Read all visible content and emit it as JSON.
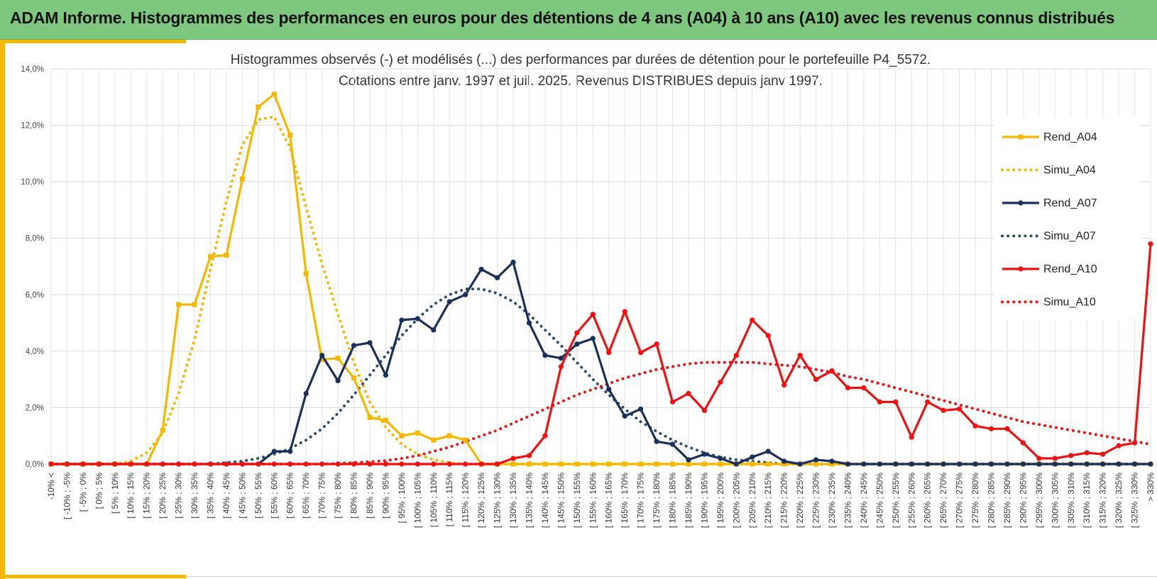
{
  "banner": {
    "title": "ADAM Informe. Histogrammes des performances en euros pour des détentions de 4 ans (A04) à 10 ans (A10) avec les revenus connus distribués"
  },
  "chart_data": {
    "type": "line",
    "title_lines": [
      "Histogrammes observés (-) et modélisés (...) des performances par durées de détention pour le portefeuille P4_5572.",
      "Cotations entre janv. 1997 et juil. 2025. Revenus DISTRIBUES depuis janv 1997."
    ],
    "ylim": [
      0,
      14
    ],
    "y_ticks": [
      0,
      2,
      4,
      6,
      8,
      10,
      12,
      14
    ],
    "y_tick_labels": [
      "0,0%",
      "2,0%",
      "4,0%",
      "6,0%",
      "8,0%",
      "10,0%",
      "12,0%",
      "14,0%"
    ],
    "grid": true,
    "legend_position": "right",
    "categories": [
      "-10% <",
      "[ -10% ; -5%",
      "[ -5% ; 0%",
      "[ 0% ; 5%",
      "[ 5% ; 10%",
      "[ 10% ; 15%",
      "[ 15% ; 20%",
      "[ 20% ; 25%",
      "[ 25% ; 30%",
      "[ 30% ; 35%",
      "[ 35% ; 40%",
      "[ 40% ; 45%",
      "[ 45% ; 50%",
      "[ 50% ; 55%",
      "[ 55% ; 60%",
      "[ 60% ; 65%",
      "[ 65% ; 70%",
      "[ 70% ; 75%",
      "[ 75% ; 80%",
      "[ 80% ; 85%",
      "[ 85% ; 90%",
      "[ 90% ; 95%",
      "[ 95% ; 100%",
      "[ 100% ; 105%",
      "[ 105% ; 110%",
      "[ 110% ; 115%",
      "[ 115% ; 120%",
      "[ 120% ; 125%",
      "[ 125% ; 130%",
      "[ 130% ; 135%",
      "[ 135% ; 140%",
      "[ 140% ; 145%",
      "[ 145% ; 150%",
      "[ 150% ; 155%",
      "[ 155% ; 160%",
      "[ 160% ; 165%",
      "[ 165% ; 170%",
      "[ 170% ; 175%",
      "[ 175% ; 180%",
      "[ 180% ; 185%",
      "[ 185% ; 190%",
      "[ 190% ; 195%",
      "[ 195% ; 200%",
      "[ 200% ; 205%",
      "[ 205% ; 210%",
      "[ 210% ; 215%",
      "[ 215% ; 220%",
      "[ 220% ; 225%",
      "[ 225% ; 230%",
      "[ 230% ; 235%",
      "[ 235% ; 240%",
      "[ 240% ; 245%",
      "[ 245% ; 250%",
      "[ 250% ; 255%",
      "[ 255% ; 260%",
      "[ 260% ; 265%",
      "[ 265% ; 270%",
      "[ 270% ; 275%",
      "[ 275% ; 280%",
      "[ 280% ; 285%",
      "[ 285% ; 290%",
      "[ 290% ; 295%",
      "[ 295% ; 300%",
      "[ 300% ; 305%",
      "[ 305% ; 310%",
      "[ 310% ; 315%",
      "[ 315% ; 320%",
      "[ 320% ; 325%",
      "[ 325% ; 330%",
      "> 330%"
    ],
    "series": [
      {
        "name": "Rend_A04",
        "color": "#f5b800",
        "style": "solid",
        "marker": "square",
        "values": [
          0,
          0,
          0,
          0,
          0,
          0,
          0,
          1.2,
          5.65,
          5.65,
          7.35,
          7.4,
          10.1,
          12.65,
          13.1,
          11.65,
          6.75,
          3.7,
          3.75,
          3.05,
          1.65,
          1.55,
          1.0,
          1.1,
          0.85,
          1.0,
          0.85,
          0,
          0,
          0,
          0,
          0,
          0,
          0,
          0,
          0,
          0,
          0,
          0,
          0,
          0,
          0,
          0,
          0,
          0,
          0,
          0,
          0,
          0,
          0,
          0,
          0,
          0,
          0,
          0,
          0,
          0,
          0,
          0,
          0,
          0,
          0,
          0,
          0,
          0,
          0,
          0,
          0,
          0,
          0
        ]
      },
      {
        "name": "Simu_A04",
        "color": "#f5b800",
        "style": "dotted",
        "marker": "none",
        "values": [
          0,
          0,
          0,
          0,
          0,
          0.1,
          0.4,
          1.1,
          2.5,
          4.4,
          6.9,
          9.3,
          11.3,
          12.2,
          12.3,
          11.2,
          9.1,
          7.1,
          5.3,
          3.6,
          2.2,
          1.3,
          0.7,
          0.35,
          0.15,
          0.05,
          0,
          0,
          0,
          0,
          0,
          0,
          0,
          0,
          0,
          0,
          0,
          0,
          0,
          0,
          0,
          0,
          0,
          0,
          0,
          0,
          0,
          0,
          0,
          0,
          0,
          0,
          0,
          0,
          0,
          0,
          0,
          0,
          0,
          0,
          0,
          0,
          0,
          0,
          0,
          0,
          0,
          0,
          0,
          0
        ]
      },
      {
        "name": "Rend_A07",
        "color": "#1a2f5a",
        "style": "solid",
        "marker": "circle",
        "values": [
          0,
          0,
          0,
          0,
          0,
          0,
          0,
          0,
          0,
          0,
          0,
          0,
          0,
          0,
          0.45,
          0.45,
          2.5,
          3.85,
          2.95,
          4.2,
          4.3,
          3.15,
          5.1,
          5.15,
          4.75,
          5.75,
          6.0,
          6.9,
          6.6,
          7.15,
          5.0,
          3.85,
          3.75,
          4.25,
          4.45,
          2.65,
          1.7,
          1.95,
          0.8,
          0.7,
          0.15,
          0.35,
          0.2,
          0,
          0.25,
          0.45,
          0.1,
          0,
          0.15,
          0.1,
          0,
          0,
          0,
          0,
          0,
          0,
          0,
          0,
          0,
          0,
          0,
          0,
          0,
          0,
          0,
          0,
          0,
          0,
          0,
          0
        ]
      },
      {
        "name": "Simu_A07",
        "color": "#2e4d6e",
        "style": "dotted",
        "marker": "none",
        "values": [
          0,
          0,
          0,
          0,
          0,
          0,
          0,
          0,
          0,
          0,
          0,
          0.05,
          0.1,
          0.2,
          0.35,
          0.55,
          0.85,
          1.25,
          1.8,
          2.45,
          3.15,
          3.85,
          4.55,
          5.15,
          5.65,
          6.0,
          6.2,
          6.2,
          6.05,
          5.75,
          5.3,
          4.75,
          4.2,
          3.6,
          3.0,
          2.45,
          1.95,
          1.5,
          1.15,
          0.85,
          0.6,
          0.4,
          0.25,
          0.15,
          0.1,
          0.05,
          0,
          0,
          0,
          0,
          0,
          0,
          0,
          0,
          0,
          0,
          0,
          0,
          0,
          0,
          0,
          0,
          0,
          0,
          0,
          0,
          0,
          0,
          0,
          0
        ]
      },
      {
        "name": "Rend_A10",
        "color": "#ee1111",
        "style": "solid",
        "marker": "circle",
        "values": [
          0,
          0,
          0,
          0,
          0,
          0,
          0,
          0,
          0,
          0,
          0,
          0,
          0,
          0,
          0,
          0,
          0,
          0,
          0,
          0,
          0,
          0,
          0,
          0,
          0,
          0,
          0,
          0,
          0,
          0.2,
          0.3,
          1.0,
          3.45,
          4.65,
          5.3,
          3.95,
          5.4,
          3.95,
          4.25,
          2.2,
          2.5,
          1.9,
          2.9,
          3.85,
          5.1,
          4.55,
          2.8,
          3.85,
          3.0,
          3.3,
          2.7,
          2.7,
          2.2,
          2.2,
          0.95,
          2.2,
          1.9,
          1.95,
          1.35,
          1.25,
          1.25,
          0.75,
          0.2,
          0.2,
          0.3,
          0.4,
          0.35,
          0.65,
          0.75,
          7.8
        ]
      },
      {
        "name": "Simu_A10",
        "color": "#ee1111",
        "style": "dotted",
        "marker": "none",
        "values": [
          0,
          0,
          0,
          0,
          0,
          0,
          0,
          0,
          0,
          0,
          0,
          0,
          0,
          0,
          0,
          0,
          0,
          0,
          0.02,
          0.05,
          0.08,
          0.12,
          0.2,
          0.3,
          0.45,
          0.6,
          0.8,
          1.0,
          1.2,
          1.45,
          1.7,
          1.95,
          2.2,
          2.45,
          2.65,
          2.85,
          3.05,
          3.2,
          3.35,
          3.45,
          3.55,
          3.6,
          3.6,
          3.6,
          3.6,
          3.55,
          3.5,
          3.45,
          3.35,
          3.25,
          3.1,
          3.0,
          2.85,
          2.7,
          2.55,
          2.4,
          2.25,
          2.1,
          1.95,
          1.8,
          1.65,
          1.5,
          1.4,
          1.3,
          1.2,
          1.1,
          1.0,
          0.9,
          0.8,
          0.7
        ]
      }
    ]
  }
}
